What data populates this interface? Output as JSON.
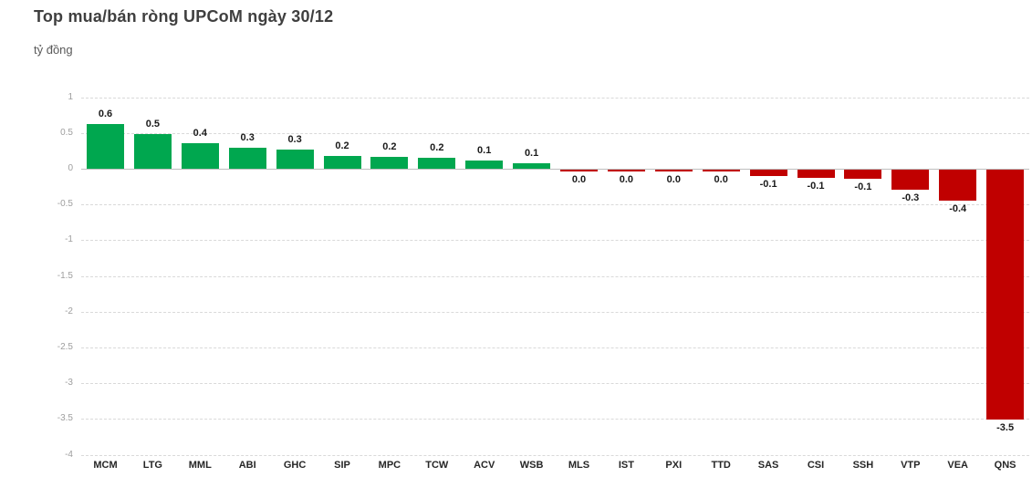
{
  "chart_data": {
    "type": "bar",
    "title": "Top mua/bán ròng UPCoM ngày 30/12",
    "ylabel": "tỷ đồng",
    "xlabel": "",
    "categories": [
      "MCM",
      "LTG",
      "MML",
      "ABI",
      "GHC",
      "SIP",
      "MPC",
      "TCW",
      "ACV",
      "WSB",
      "MLS",
      "IST",
      "PXI",
      "TTD",
      "SAS",
      "CSI",
      "SSH",
      "VTP",
      "VEA",
      "QNS"
    ],
    "values": [
      0.63,
      0.48,
      0.36,
      0.29,
      0.27,
      0.18,
      0.16,
      0.15,
      0.12,
      0.08,
      -0.02,
      -0.02,
      -0.02,
      -0.02,
      -0.09,
      -0.11,
      -0.13,
      -0.28,
      -0.43,
      -3.5
    ],
    "labels": [
      "0.6",
      "0.5",
      "0.4",
      "0.3",
      "0.3",
      "0.2",
      "0.2",
      "0.2",
      "0.1",
      "0.1",
      "0.0",
      "0.0",
      "0.0",
      "0.0",
      "-0.1",
      "-0.1",
      "-0.1",
      "-0.3",
      "-0.4",
      "-3.5"
    ],
    "ylim": [
      -4,
      1
    ],
    "ytick_values": [
      1,
      0.5,
      0,
      -0.5,
      -1,
      -1.5,
      -2,
      -2.5,
      -3,
      -3.5,
      -4
    ],
    "ytick_labels": [
      "1",
      "0.5",
      "0",
      "-0.5",
      "-1",
      "-1.5",
      "-2",
      "-2.5",
      "-3",
      "-3.5",
      "-4"
    ],
    "grid": true,
    "legend_position": "none",
    "colors": {
      "positive": "#00A74F",
      "negative": "#C00000",
      "grid": "#D9D9D9",
      "zero_line": "#BFBFBF",
      "y_tick_label": "#9E9E9E",
      "category_label": "#262626",
      "value_label": "#1A1A1A",
      "title": "#3F3F3F",
      "subtitle": "#595959",
      "background": "#FFFFFF"
    }
  }
}
